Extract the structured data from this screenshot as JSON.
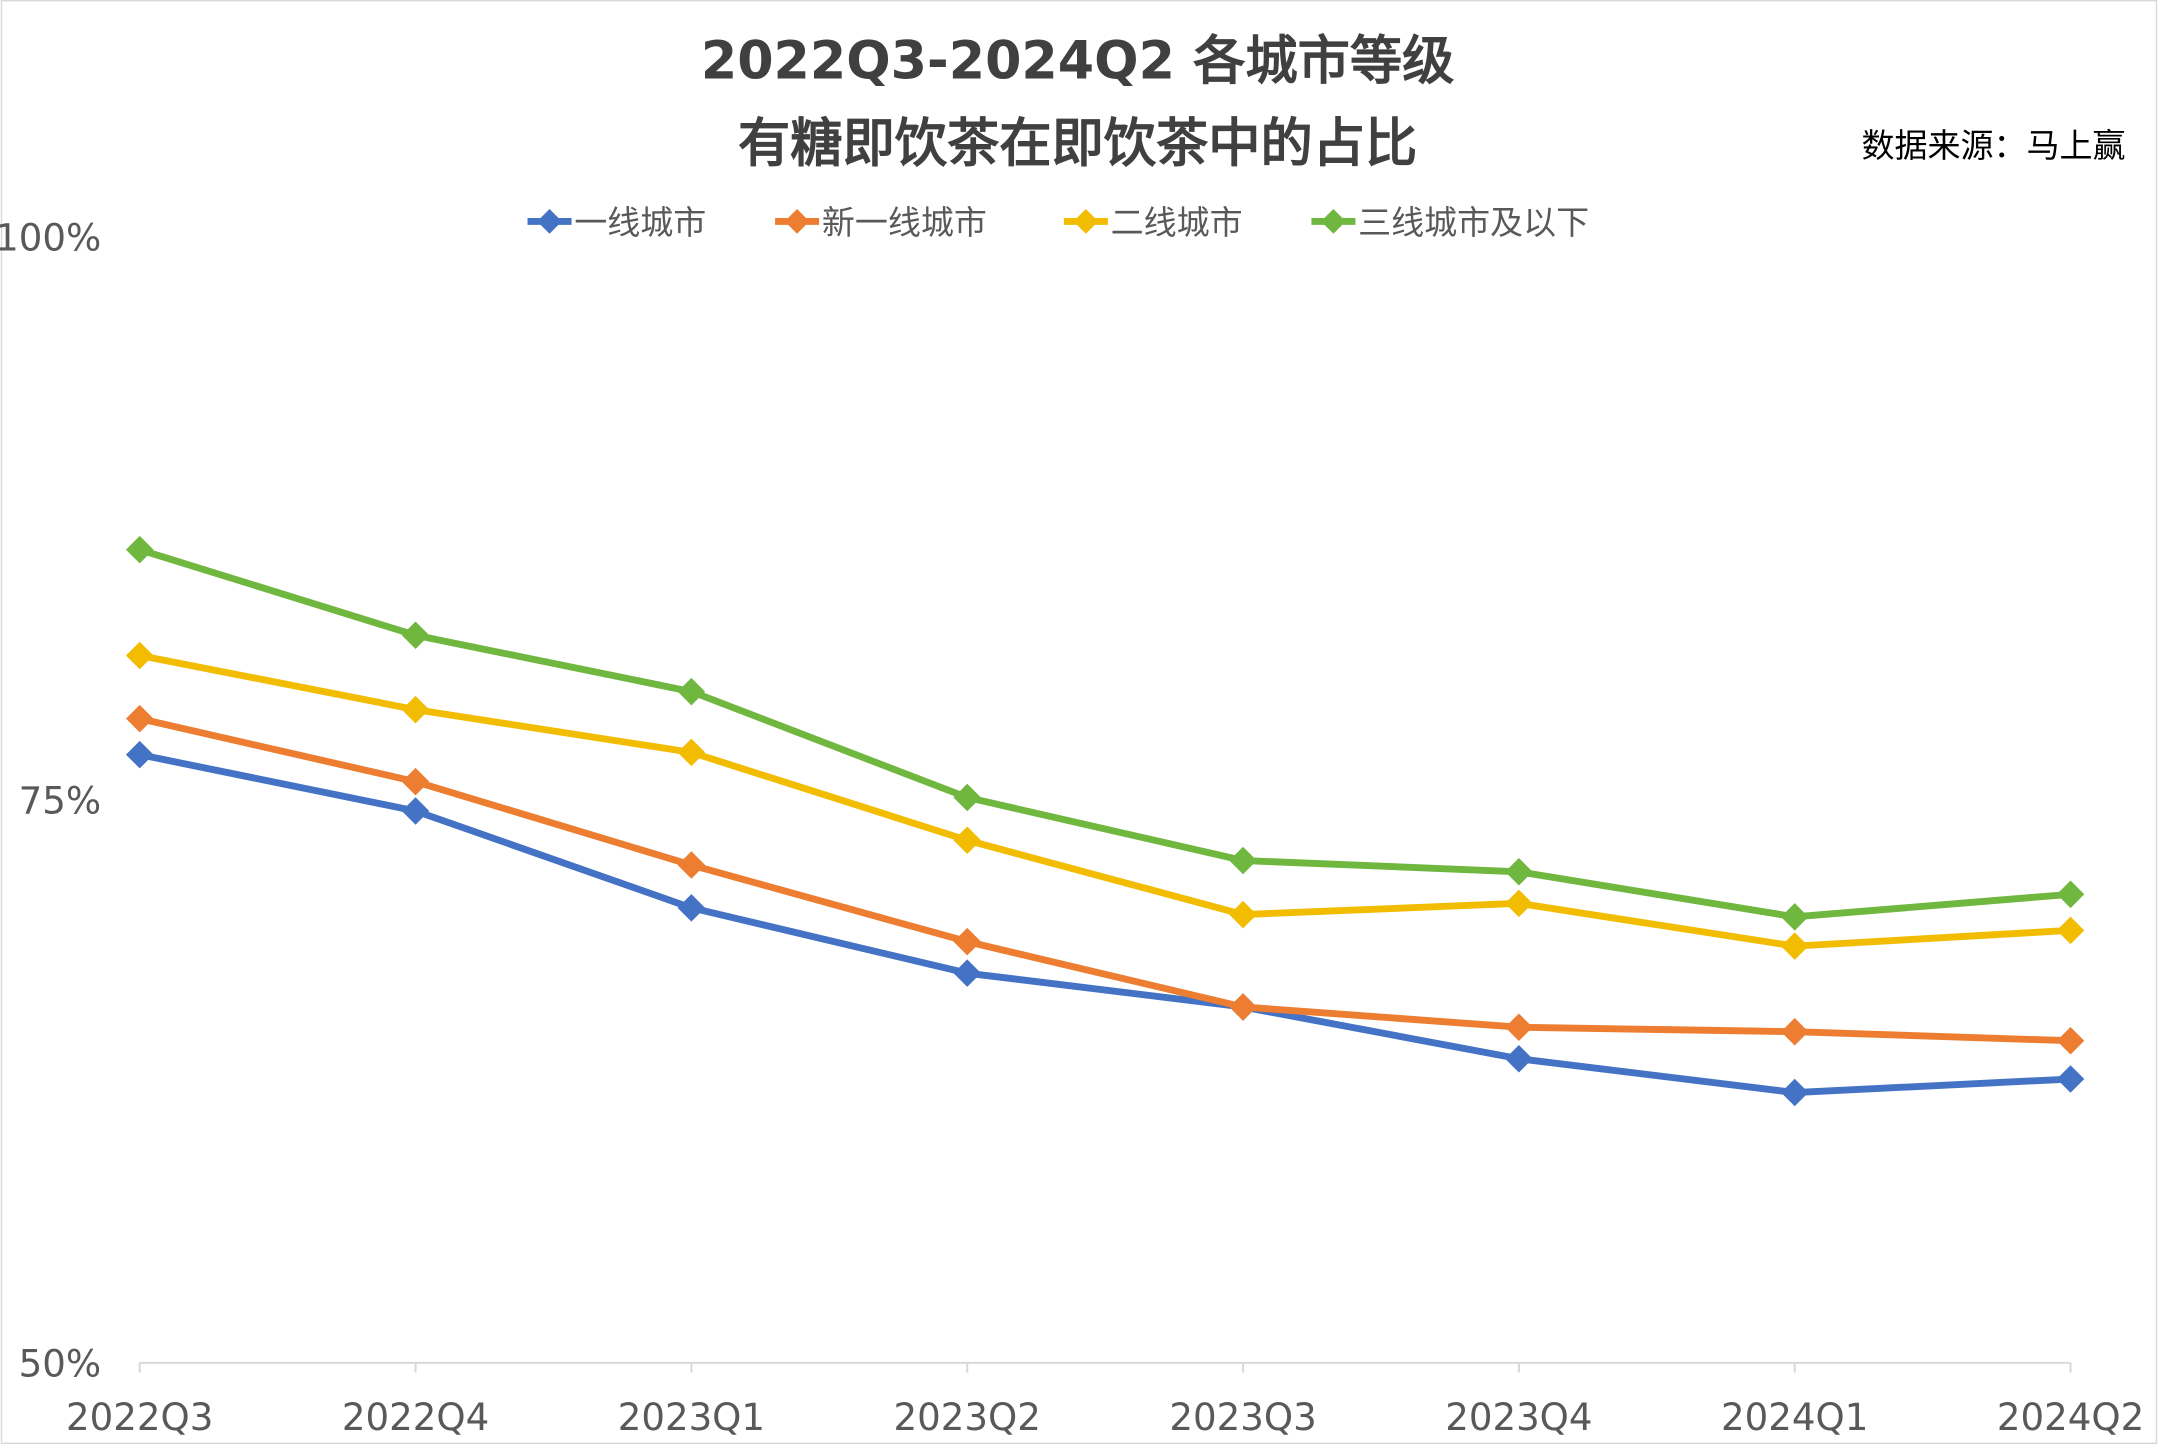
{
  "chart_data": {
    "type": "line",
    "title": [
      "2022Q3-2024Q2 各城市等级",
      "有糖即饮茶在即饮茶中的占比"
    ],
    "source": "数据来源：马上赢",
    "categories": [
      "2022Q3",
      "2022Q4",
      "2023Q1",
      "2023Q2",
      "2023Q3",
      "2023Q4",
      "2024Q1",
      "2024Q2"
    ],
    "ylim": [
      50,
      100
    ],
    "yticks": [
      50,
      75,
      100
    ],
    "ytick_labels": [
      "50%",
      "75%",
      "100%"
    ],
    "grid": false,
    "legend": "top",
    "series": [
      {
        "name": "一线城市",
        "color": "#4472C4",
        "values": [
          77.0,
          74.5,
          70.2,
          67.3,
          65.8,
          63.5,
          62.0,
          62.6
        ]
      },
      {
        "name": "新一线城市",
        "color": "#ED7D31",
        "values": [
          78.6,
          75.8,
          72.1,
          68.7,
          65.8,
          64.9,
          64.7,
          64.3
        ]
      },
      {
        "name": "二线城市",
        "color": "#F2BC00",
        "values": [
          81.4,
          79.0,
          77.1,
          73.2,
          69.9,
          70.4,
          68.5,
          69.2
        ]
      },
      {
        "name": "三线城市及以下",
        "color": "#70B73F",
        "values": [
          86.1,
          82.3,
          79.8,
          75.1,
          72.3,
          71.8,
          69.8,
          70.8
        ]
      }
    ]
  }
}
